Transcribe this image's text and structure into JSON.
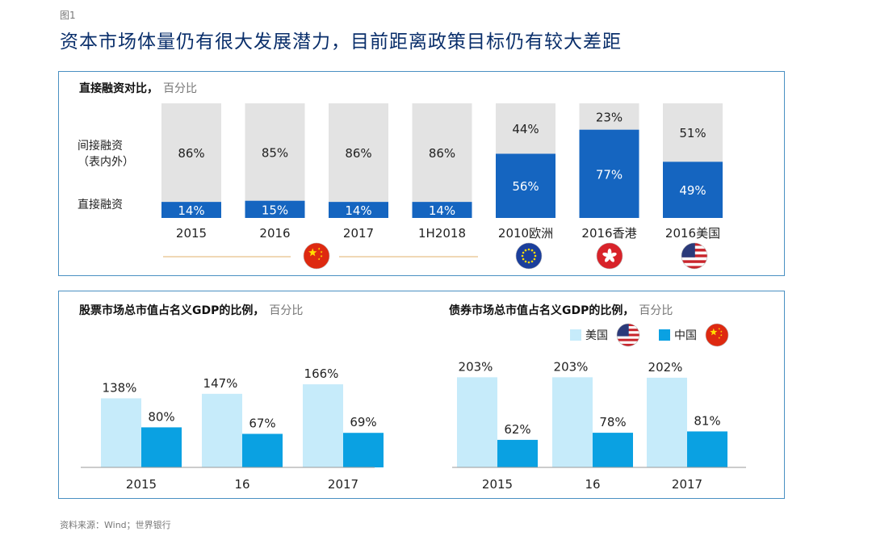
{
  "figure_label": "图1",
  "title": "资本市场体量仍有很大发展潜力，目前距离政策目标仍有较大差距",
  "source": "资料来源：Wind；世界银行",
  "colors": {
    "border": "#4a90c2",
    "gray": "#e3e3e3",
    "blue": "#1565c0",
    "us": "#c6ebfa",
    "cn": "#0aa1e2",
    "title": "#0a2f6b"
  },
  "chart_data": [
    {
      "type": "bar",
      "stacked": true,
      "title": "直接融资对比，",
      "unit": "百分比",
      "categories": [
        "2015",
        "2016",
        "2017",
        "1H2018",
        "2010欧洲",
        "2016香港",
        "2016美国"
      ],
      "series": [
        {
          "name": "直接融资",
          "values": [
            14,
            15,
            14,
            14,
            56,
            77,
            49
          ]
        },
        {
          "name": "间接融资（表内外）",
          "values": [
            86,
            85,
            86,
            86,
            44,
            23,
            51
          ]
        }
      ],
      "labels_direct": [
        "14%",
        "15%",
        "14%",
        "14%",
        "56%",
        "77%",
        "49%"
      ],
      "labels_indirect": [
        "86%",
        "85%",
        "86%",
        "86%",
        "44%",
        "23%",
        "51%"
      ],
      "row_labels": [
        "间接融资",
        "（表内外）",
        "直接融资"
      ],
      "flags": [
        "china-flag-icon",
        "eu-flag-icon",
        "hongkong-flag-icon",
        "us-flag-icon"
      ],
      "ylim": [
        0,
        100
      ]
    },
    {
      "type": "bar",
      "title": "股票市场总市值占名义GDP的比例，",
      "unit": "百分比",
      "categories": [
        "2015",
        "16",
        "2017"
      ],
      "series": [
        {
          "name": "美国",
          "values": [
            138,
            147,
            166
          ]
        },
        {
          "name": "中国",
          "values": [
            80,
            67,
            69
          ]
        }
      ],
      "labels": {
        "us": [
          "138%",
          "147%",
          "166%"
        ],
        "cn": [
          "80%",
          "67%",
          "69%"
        ]
      }
    },
    {
      "type": "bar",
      "title": "债券市场总市值占名义GDP的比例，",
      "unit": "百分比",
      "categories": [
        "2015",
        "16",
        "2017"
      ],
      "series": [
        {
          "name": "美国",
          "values": [
            203,
            203,
            202
          ]
        },
        {
          "name": "中国",
          "values": [
            62,
            78,
            81
          ]
        }
      ],
      "labels": {
        "us": [
          "203%",
          "203%",
          "202%"
        ],
        "cn": [
          "62%",
          "78%",
          "81%"
        ]
      }
    }
  ],
  "legend": {
    "us": "美国",
    "cn": "中国"
  }
}
